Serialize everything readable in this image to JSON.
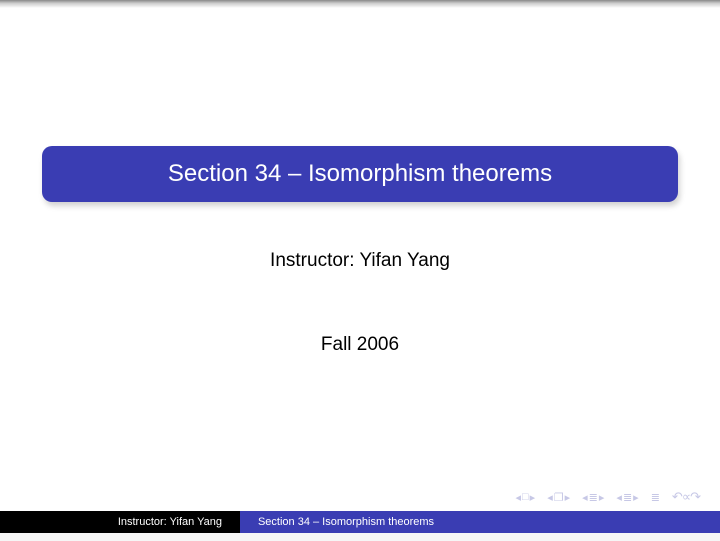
{
  "colors": {
    "theme_blue": "#3a3db3",
    "black": "#000000",
    "white": "#ffffff",
    "nav_icon": "#c7c8e6",
    "page_bg": "#ffffff",
    "body_bg": "#f6f6f6"
  },
  "title": "Section 34 – Isomorphism theorems",
  "instructor": "Instructor: Yifan Yang",
  "term": "Fall 2006",
  "nav": {
    "first_back": "◂",
    "first_fwd": "▸",
    "doc_back": "◂",
    "doc_sym": "❐",
    "doc_fwd": "▸",
    "sec_back1": "◂",
    "sec_sym1": "≣",
    "sec_fwd1": "▸",
    "sec_back2": "◂",
    "sec_sym2": "≣",
    "sec_fwd2": "▸",
    "goto": "≣",
    "undo": "↶∝↷"
  },
  "footer": {
    "left": "Instructor: Yifan Yang",
    "mid": "Section 34 – Isomorphism theorems"
  }
}
